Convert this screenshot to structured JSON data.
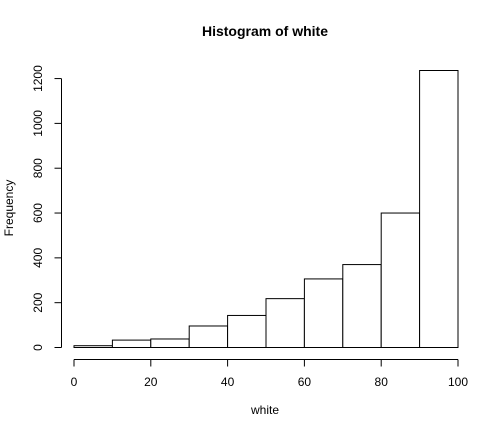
{
  "chart_data": {
    "type": "bar",
    "title": "Histogram of white",
    "xlabel": "white",
    "ylabel": "Frequency",
    "bin_edges": [
      0,
      10,
      20,
      30,
      40,
      50,
      60,
      70,
      80,
      90,
      100
    ],
    "values": [
      8,
      33,
      38,
      96,
      143,
      218,
      306,
      370,
      600,
      1236
    ],
    "xlim": [
      0,
      100
    ],
    "ylim": [
      0,
      1236
    ],
    "x_ticks": [
      "0",
      "20",
      "40",
      "60",
      "80",
      "100"
    ],
    "y_ticks": [
      "0",
      "200",
      "400",
      "600",
      "800",
      "1000",
      "1200"
    ],
    "grid": false,
    "colors": {
      "bar_fill": "#ffffff",
      "bar_stroke": "#000000"
    }
  }
}
